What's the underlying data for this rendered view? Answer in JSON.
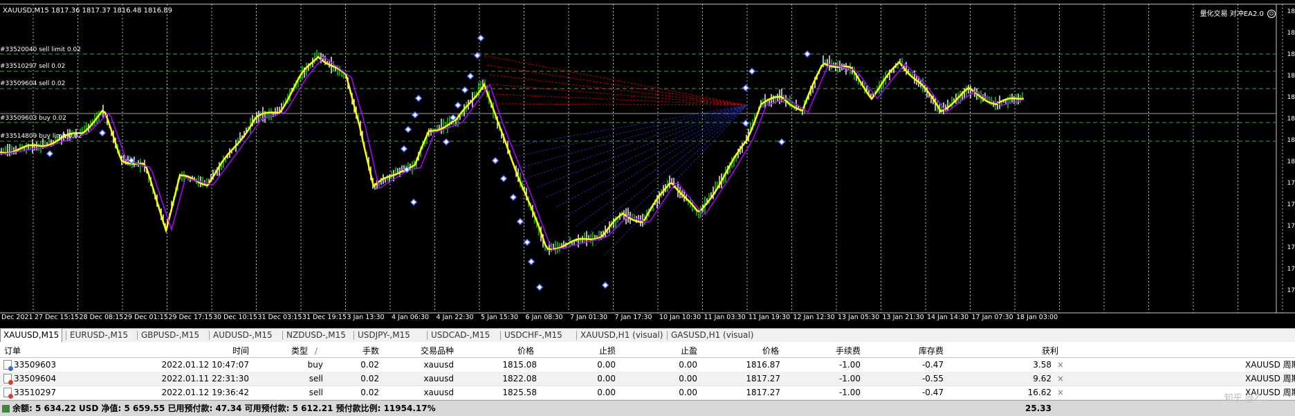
{
  "chart": {
    "ohlc_header": "XAUUSD,M15  1817.36 1817.37 1816.48 1816.89",
    "ea_label": "量化交易 对冲EA2.0",
    "smile": "☺",
    "order_labels": [
      "#33520040 sell limit 0.02",
      "#33510297 sell 0.02",
      "#33509604 sell 0.02",
      "#33509603 buy 0.02",
      "#33514809 buy limit 0.02"
    ],
    "price_axis": [
      "18",
      "18",
      "18",
      "18",
      "18",
      "18",
      "18",
      "18",
      "17",
      "17",
      "17",
      "17",
      "17",
      "17"
    ],
    "time_axis": [
      "Dec 2021",
      "27 Dec 15:15",
      "28 Dec 08:15",
      "29 Dec 01:15",
      "29 Dec 17:15",
      "30 Dec 10:15",
      "31 Dec 03:15",
      "31 Dec 19:15",
      "3 Jan 13:30",
      "4 Jan 06:30",
      "4 Jan 22:30",
      "5 Jan 15:30",
      "6 Jan 08:30",
      "7 Jan 01:30",
      "7 Jan 17:30",
      "10 Jan 10:30",
      "11 Jan 03:30",
      "11 Jan 19:30",
      "12 Jan 12:30",
      "13 Jan 05:30",
      "13 Jan 21:30",
      "14 Jan 14:30",
      "17 Jan 07:30",
      "18 Jan 03:00"
    ]
  },
  "tabs": [
    "XAUUSD,M15",
    "EURUSD-,M15",
    "GBPUSD-,M15",
    "AUDUSD-,M15",
    "NZDUSD-,M15",
    "USDJPY-,M15",
    "USDCAD-,M15",
    "USDCHF-,M15",
    "XAUUSD,H1 (visual)",
    "GASUSD,H1 (visual)"
  ],
  "table": {
    "headers": {
      "order": "订单",
      "time": "时间",
      "type": "类型",
      "sort": "/",
      "lots": "手数",
      "symbol": "交易品种",
      "open_price": "价格",
      "sl": "止损",
      "tp": "止盈",
      "cur_price": "价格",
      "commission": "手续费",
      "swap": "库存费",
      "profit": "获利"
    },
    "rows": [
      {
        "order": "33509603",
        "time": "2022.01.12 10:47:07",
        "type": "buy",
        "lots": "0.02",
        "symbol": "xauusd",
        "open_price": "1815.08",
        "sl": "0.00",
        "tp": "0.00",
        "cur_price": "1816.87",
        "commission": "-1.00",
        "swap": "-0.47",
        "profit": "3.58",
        "comment": "XAUUSD 周期"
      },
      {
        "order": "33509604",
        "time": "2022.01.11 22:31:30",
        "type": "sell",
        "lots": "0.02",
        "symbol": "xauusd",
        "open_price": "1822.08",
        "sl": "0.00",
        "tp": "0.00",
        "cur_price": "1817.27",
        "commission": "-1.00",
        "swap": "-0.55",
        "profit": "9.62",
        "comment": "XAUUSD 周期"
      },
      {
        "order": "33510297",
        "time": "2022.01.12 19:36:42",
        "type": "sell",
        "lots": "0.02",
        "symbol": "xauusd",
        "open_price": "1825.58",
        "sl": "0.00",
        "tp": "0.00",
        "cur_price": "1817.27",
        "commission": "-1.00",
        "swap": "-0.47",
        "profit": "16.62",
        "comment": "XAUUSD 周期"
      }
    ],
    "close_glyph": "×",
    "summary": "余额: 5 634.22 USD  净值: 5 659.55  已用预付款: 47.34  可用预付款: 5 612.21  预付款比例: 11954.17%",
    "summary_total": "25.33",
    "watermark": "知乎 @Z..."
  },
  "colors": {
    "chart_bg": "#000000",
    "grid": "#ffffff",
    "order_line": "#3fa34a",
    "candle_up": "#00e000",
    "ma_fast": "#ffff00",
    "ma_slow": "#b000ff",
    "marker": "#4d6bff"
  }
}
